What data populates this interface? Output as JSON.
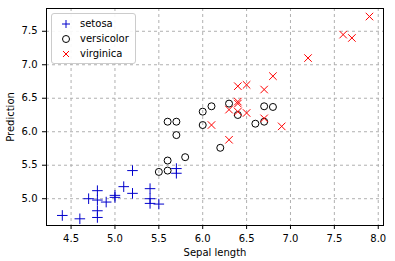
{
  "chart_data": {
    "type": "scatter",
    "x_label": "Sepal length",
    "y_label": "Prediction",
    "xlim": [
      4.22,
      8.06
    ],
    "ylim": [
      4.6,
      7.84
    ],
    "xticks": [
      {
        "value": 4.5,
        "label": "4.5"
      },
      {
        "value": 5,
        "label": "5.0"
      },
      {
        "value": 5.5,
        "label": "5.5"
      },
      {
        "value": 6,
        "label": "6.0"
      },
      {
        "value": 6.5,
        "label": "6.5"
      },
      {
        "value": 7,
        "label": "7.0"
      },
      {
        "value": 7.5,
        "label": "7.5"
      },
      {
        "value": 8,
        "label": "8.0"
      }
    ],
    "yticks": [
      {
        "value": 5,
        "label": "5.0"
      },
      {
        "value": 5.5,
        "label": "5.5"
      },
      {
        "value": 6,
        "label": "6.0"
      },
      {
        "value": 6.5,
        "label": "6.5"
      },
      {
        "value": 7,
        "label": "7.0"
      },
      {
        "value": 7.5,
        "label": "7.5"
      }
    ],
    "grid": true,
    "legend": "upper left",
    "series": [
      {
        "name": "setosa",
        "color": "#0000cc",
        "marker": "plus",
        "x": [
          4.4,
          4.6,
          4.7,
          4.8,
          4.8,
          4.8,
          4.8,
          4.9,
          5.0,
          5.0,
          5.1,
          5.2,
          5.2,
          5.4,
          5.4,
          5.4,
          5.5,
          5.7,
          5.7
        ],
        "values": [
          4.75,
          4.7,
          5.0,
          5.12,
          4.98,
          4.82,
          4.72,
          4.95,
          5.05,
          5.02,
          5.18,
          5.08,
          5.42,
          5.15,
          5.0,
          4.93,
          4.92,
          5.38,
          5.45
        ]
      },
      {
        "name": "versicolor",
        "color": "#000000",
        "marker": "circle",
        "x": [
          5.5,
          5.6,
          5.6,
          5.6,
          5.7,
          5.7,
          5.8,
          6.0,
          6.0,
          6.1,
          6.2,
          6.3,
          6.4,
          6.6,
          6.7,
          6.7,
          6.8
        ],
        "values": [
          5.4,
          5.42,
          5.57,
          6.15,
          5.95,
          6.15,
          5.62,
          6.1,
          6.3,
          6.38,
          5.76,
          6.42,
          6.25,
          6.12,
          6.38,
          6.15,
          6.37
        ]
      },
      {
        "name": "virginica",
        "color": "#ff0000",
        "marker": "x",
        "x": [
          6.3,
          6.1,
          6.3,
          6.4,
          6.4,
          6.4,
          6.4,
          6.5,
          6.5,
          6.7,
          6.7,
          6.8,
          6.9,
          7.2,
          7.6,
          7.7,
          7.9
        ],
        "values": [
          5.88,
          6.1,
          6.33,
          6.3,
          6.42,
          6.45,
          6.68,
          6.7,
          6.28,
          6.63,
          6.2,
          6.83,
          6.08,
          7.1,
          7.45,
          7.4,
          7.72
        ]
      }
    ]
  }
}
